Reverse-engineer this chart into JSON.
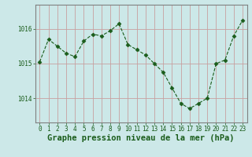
{
  "x": [
    0,
    1,
    2,
    3,
    4,
    5,
    6,
    7,
    8,
    9,
    10,
    11,
    12,
    13,
    14,
    15,
    16,
    17,
    18,
    19,
    20,
    21,
    22,
    23
  ],
  "y": [
    1015.05,
    1015.7,
    1015.5,
    1015.3,
    1015.2,
    1015.65,
    1015.85,
    1015.8,
    1015.95,
    1016.15,
    1015.55,
    1015.4,
    1015.25,
    1015.0,
    1014.75,
    1014.3,
    1013.85,
    1013.7,
    1013.85,
    1014.0,
    1015.0,
    1015.1,
    1015.8,
    1016.25
  ],
  "line_color": "#1a5c1a",
  "marker": "D",
  "marker_size": 2.5,
  "bg_color": "#cce8e8",
  "grid_color_v": "#c8a0a0",
  "grid_color_h": "#c8a0a0",
  "xlabel": "Graphe pression niveau de la mer (hPa)",
  "xlabel_fontsize": 7.5,
  "ytick_labels": [
    "1014",
    "1015",
    "1016"
  ],
  "ytick_vals": [
    1014,
    1015,
    1016
  ],
  "ylim": [
    1013.3,
    1016.7
  ],
  "xlim": [
    -0.5,
    23.5
  ],
  "tick_color": "#1a5c1a",
  "tick_fontsize": 5.5,
  "label_color": "#1a5c1a"
}
